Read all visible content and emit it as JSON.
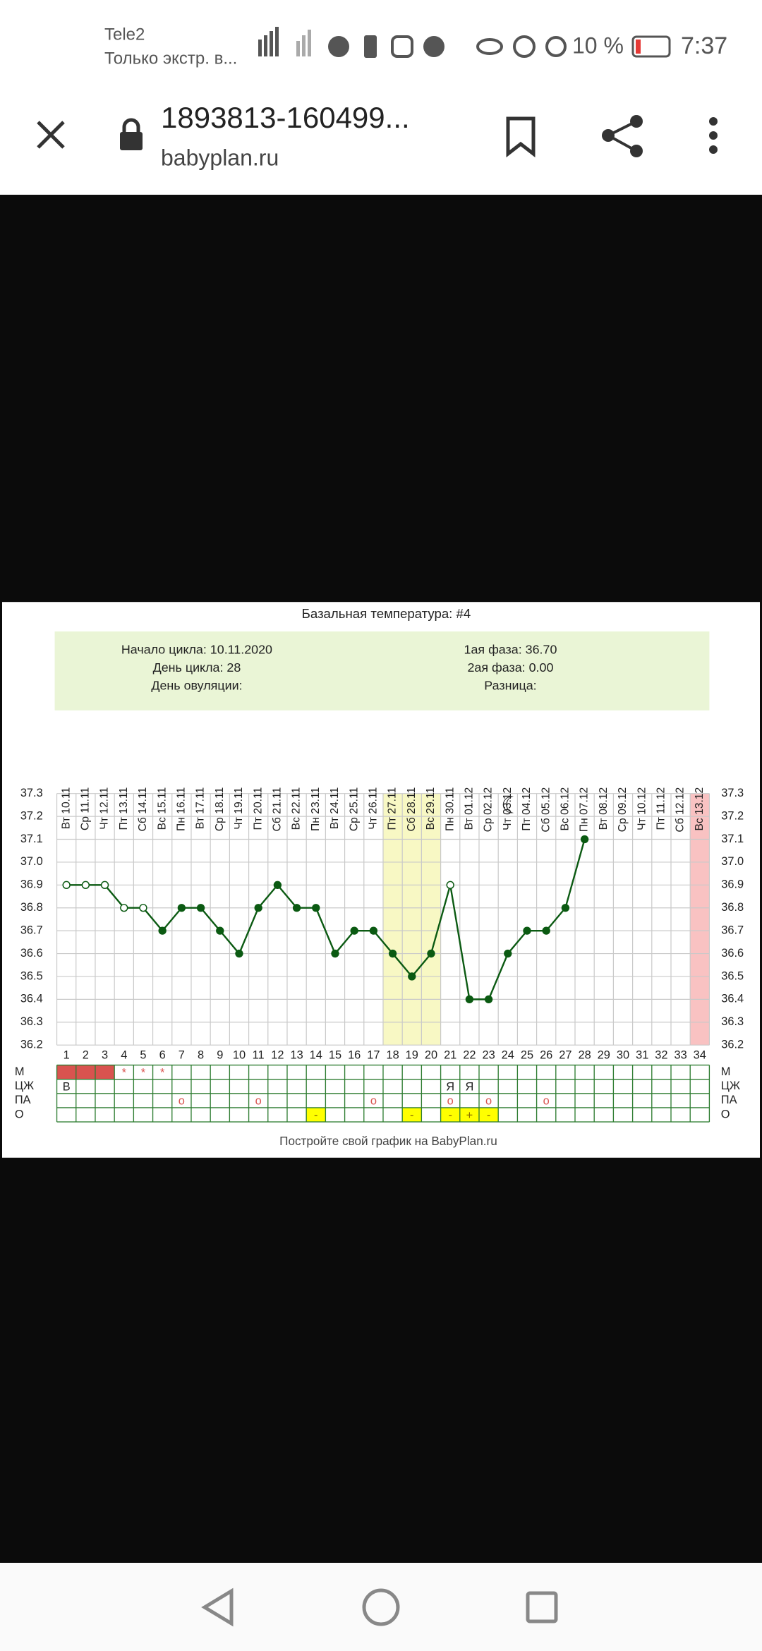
{
  "status_bar": {
    "carrier": "Tele2",
    "carrier_note": "Только экстр. в...",
    "battery": "10 %",
    "time": "7:37"
  },
  "toolbar": {
    "page_title": "1893813-160499...",
    "domain": "babyplan.ru"
  },
  "chart_data": {
    "type": "line",
    "title": "Базальная температура: #4",
    "info": {
      "left": [
        "Начало цикла: 10.11.2020",
        "День цикла: 28",
        "День овуляции:"
      ],
      "right": [
        "1ая фаза: 36.70",
        "2ая фаза: 0.00",
        "Разница:"
      ]
    },
    "categories": [
      "Вт 10.11",
      "Ср 11.11",
      "Чт 12.11",
      "Пт 13.11",
      "Сб 14.11",
      "Вс 15.11",
      "Пн 16.11",
      "Вт 17.11",
      "Ср 18.11",
      "Чт 19.11",
      "Пт 20.11",
      "Сб 21.11",
      "Вс 22.11",
      "Пн 23.11",
      "Вт 24.11",
      "Ср 25.11",
      "Чт 26.11",
      "Пт 27.11",
      "Сб 28.11",
      "Вс 29.11",
      "Пн 30.11",
      "Вт 01.12",
      "Ср 02.12",
      "Чт 03.12",
      "Пт 04.12",
      "Сб 05.12",
      "Вс 06.12",
      "Пн 07.12",
      "Вт 08.12",
      "Ср 09.12",
      "Чт 10.12",
      "Пт 11.12",
      "Сб 12.12",
      "Вс 13.12"
    ],
    "days": [
      1,
      2,
      3,
      4,
      5,
      6,
      7,
      8,
      9,
      10,
      11,
      12,
      13,
      14,
      15,
      16,
      17,
      18,
      19,
      20,
      21,
      22,
      23,
      24,
      25,
      26,
      27,
      28,
      29,
      30,
      31,
      32,
      33,
      34
    ],
    "values": [
      36.9,
      36.9,
      36.9,
      36.8,
      36.8,
      36.7,
      36.8,
      36.8,
      36.7,
      36.6,
      36.8,
      36.9,
      36.8,
      36.8,
      36.6,
      36.7,
      36.7,
      36.6,
      36.5,
      36.6,
      36.9,
      36.4,
      36.4,
      36.6,
      36.7,
      36.7,
      36.8,
      37.1,
      null,
      null,
      null,
      null,
      null,
      null
    ],
    "hollow": [
      true,
      true,
      true,
      true,
      true,
      false,
      false,
      false,
      false,
      false,
      false,
      false,
      false,
      false,
      false,
      false,
      false,
      false,
      false,
      false,
      true,
      false,
      false,
      false,
      false,
      false,
      false,
      false,
      false,
      false,
      false,
      false,
      false,
      false
    ],
    "color": "#0b5a12",
    "ylim": [
      36.2,
      37.3
    ],
    "yticks": [
      36.2,
      36.3,
      36.4,
      36.5,
      36.6,
      36.7,
      36.8,
      36.9,
      {
        "value": 37.0,
        "label": "37.0"
      },
      37.1,
      37.2,
      37.3
    ],
    "grid": true,
    "bands": [
      {
        "from": 18,
        "to": 20,
        "color": "#f8f8c4"
      },
      {
        "from": 34,
        "to": 34,
        "color": "#f9c2c2"
      }
    ],
    "table_rows": [
      {
        "label": "М",
        "text_color": "#d9534f",
        "fill_color": "#d9534f",
        "filled": [
          1,
          2,
          3
        ],
        "cells": [
          null,
          null,
          null,
          "*",
          "*",
          "*",
          null,
          null,
          null,
          null,
          null,
          null,
          null,
          null,
          null,
          null,
          null,
          null,
          null,
          null,
          null,
          null,
          null,
          null,
          null,
          null,
          null,
          null,
          null,
          null,
          null,
          null,
          null,
          null
        ]
      },
      {
        "label": "ЦЖ",
        "text_color": "#222222",
        "cells": [
          "В",
          null,
          null,
          null,
          null,
          null,
          null,
          null,
          null,
          null,
          null,
          null,
          null,
          null,
          null,
          null,
          null,
          null,
          null,
          null,
          "Я",
          "Я",
          null,
          null,
          null,
          null,
          null,
          null,
          null,
          null,
          null,
          null,
          null,
          null
        ]
      },
      {
        "label": "ПА",
        "text_color": "#d9534f",
        "cells": [
          null,
          null,
          null,
          null,
          null,
          null,
          "o",
          null,
          null,
          null,
          "o",
          null,
          null,
          null,
          null,
          null,
          "o",
          null,
          null,
          null,
          "o",
          null,
          "o",
          null,
          null,
          "o",
          null,
          null,
          null,
          null,
          null,
          null,
          null,
          null
        ]
      },
      {
        "label": "О",
        "text_color": "#8a6d00",
        "fill_color": "#ffff00",
        "filled": [
          14,
          19,
          21,
          22,
          23
        ],
        "cells": [
          null,
          null,
          null,
          null,
          null,
          null,
          null,
          null,
          null,
          null,
          null,
          null,
          null,
          "-",
          null,
          null,
          null,
          null,
          "-",
          null,
          "-",
          "+",
          "-",
          null,
          null,
          null,
          null,
          null,
          null,
          null,
          null,
          null,
          null,
          null
        ]
      }
    ],
    "footer": "Постройте свой график на BabyPlan.ru"
  }
}
